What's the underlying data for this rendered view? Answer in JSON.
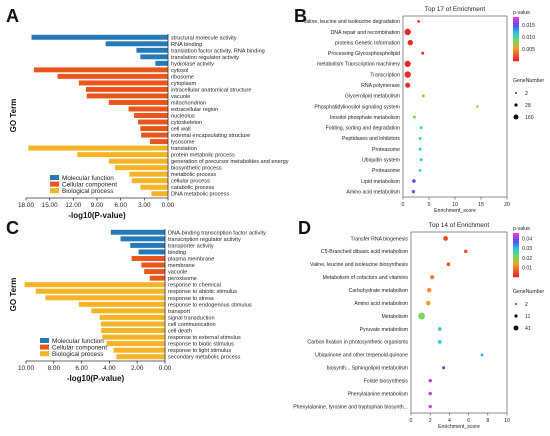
{
  "panels": {
    "A": "A",
    "B": "B",
    "C": "C",
    "D": "D"
  },
  "chart_data": [
    {
      "panel": "A",
      "type": "bar",
      "orientation": "horizontal-left",
      "xlabel": "-log10(P-value)",
      "ylabel": "GO Term",
      "xlim": [
        0,
        18
      ],
      "xticks": [
        "18.00",
        "15.00",
        "12.00",
        "9.00",
        "6.00",
        "3.00",
        "0.00"
      ],
      "legend": {
        "position": "bottom-left",
        "entries": [
          {
            "name": "Molecular function",
            "color": "#2679b9"
          },
          {
            "name": "Cellular component",
            "color": "#e8561c"
          },
          {
            "name": "Biological process",
            "color": "#f4b426"
          }
        ]
      },
      "categories": [
        "structural molecule activity",
        "RNA binding",
        "translation factor activity, RNA binding",
        "translation regulator activity",
        "hydrolase activity",
        "cytosol",
        "ribosome",
        "cytoplasm",
        "intracellular anatomical structure",
        "vacuole",
        "mitochondrion",
        "extracellular region",
        "nucleolus",
        "cytoskeleton",
        "cell wall",
        "external encapsulating structure",
        "lysosome",
        "translation",
        "protein metabolic process",
        "generation of precursor metabolites and energy",
        "biosynthetic process",
        "metabolic process",
        "cellular process",
        "catabolic process",
        "DNA metabolic process"
      ],
      "values": [
        17.3,
        7.9,
        4.0,
        3.5,
        1.6,
        17.0,
        14.0,
        11.3,
        10.4,
        10.3,
        7.5,
        5.0,
        4.3,
        3.8,
        3.5,
        3.4,
        2.3,
        17.7,
        11.5,
        7.5,
        6.7,
        4.9,
        4.6,
        3.5,
        2.1
      ],
      "groups": [
        0,
        0,
        0,
        0,
        0,
        1,
        1,
        1,
        1,
        1,
        1,
        1,
        1,
        1,
        1,
        1,
        1,
        2,
        2,
        2,
        2,
        2,
        2,
        2,
        2
      ]
    },
    {
      "panel": "B",
      "type": "scatter",
      "title": "Top 17 of Enrichment",
      "xlabel": "Enrichment_score",
      "xlim": [
        0,
        20
      ],
      "xticks": [
        0,
        5,
        10,
        15,
        20
      ],
      "colorbar": {
        "title": "p-value",
        "ticks": [
          "0.015",
          "0.010",
          "0.005"
        ]
      },
      "size_legend": {
        "title": "GeneNumber",
        "values": [
          "2",
          "28",
          "160"
        ]
      },
      "categories": [
        "Valine, leucine and isoleucine degradation",
        "DNA repair and recombination",
        "proteins Genetic Information",
        "Processing Glycosphospholipid",
        "metabolism Transcription machinery",
        "Transcription",
        "RNA polymerase",
        "Glycerolipid metabolism",
        "Phosphatidylinositol signaling system",
        "Inositol phosphate metabolism",
        "Folding, sorting and degradation",
        "Peptidases and inhibitors",
        "Proteasome",
        "Ubiquitin system",
        "Proteasome",
        "Lipid metabolism",
        "Amino acid metabolism"
      ],
      "x": [
        3.0,
        0.9,
        1.4,
        3.8,
        0.9,
        0.9,
        0.9,
        3.9,
        14.3,
        2.2,
        3.5,
        3.3,
        3.3,
        3.5,
        3.3,
        2.1,
        2.0
      ],
      "gene_number": [
        6,
        110,
        72,
        9,
        104,
        112,
        60,
        10,
        4,
        10,
        9,
        7,
        9,
        8,
        6,
        20,
        16
      ],
      "pvalue": [
        0.0003,
        0.0001,
        0.0002,
        0.0004,
        0.0001,
        0.0001,
        0.0002,
        0.006,
        0.008,
        0.009,
        0.011,
        0.012,
        0.012,
        0.013,
        0.012,
        0.017,
        0.018
      ]
    },
    {
      "panel": "C",
      "type": "bar",
      "orientation": "horizontal-left",
      "xlabel": "-log10(P-value)",
      "ylabel": "GO Term",
      "xlim": [
        0,
        10
      ],
      "xticks": [
        "10.00",
        "8.00",
        "6.00",
        "4.00",
        "2.00",
        "0.00"
      ],
      "legend": {
        "position": "bottom-left",
        "entries": [
          {
            "name": "Molecular function",
            "color": "#2679b9"
          },
          {
            "name": "Cellular component",
            "color": "#e8561c"
          },
          {
            "name": "Biological process",
            "color": "#f4b426"
          }
        ]
      },
      "categories": [
        "DNA-binding transcription factor activity",
        "transcription regulator activity",
        "transporter activity",
        "binding",
        "plasma membrane",
        "membrane",
        "vacuole",
        "peroxisome",
        "response to chemical",
        "response to abiotic stimulus",
        "response to stress",
        "response to endogenous stimulus",
        "transport",
        "signal transduction",
        "cell communication",
        "cell death",
        "response to external stimulus",
        "response to biotic stimulus",
        "response to light stimulus",
        "secondary metabolic process"
      ],
      "values": [
        3.9,
        3.2,
        2.5,
        1.9,
        2.4,
        1.7,
        1.5,
        1.1,
        10.1,
        9.3,
        8.6,
        6.2,
        5.3,
        4.7,
        4.6,
        4.6,
        4.5,
        4.2,
        3.7,
        3.5
      ],
      "groups": [
        0,
        0,
        0,
        0,
        1,
        1,
        1,
        1,
        2,
        2,
        2,
        2,
        2,
        2,
        2,
        2,
        2,
        2,
        2,
        2
      ]
    },
    {
      "panel": "D",
      "type": "scatter",
      "title": "Top 14 of Enrichment",
      "xlabel": "Enrichment_score",
      "xlim": [
        0,
        10
      ],
      "xticks": [
        0,
        2,
        4,
        6,
        8,
        10
      ],
      "colorbar": {
        "title": "p-value",
        "ticks": [
          "0.04",
          "0.03",
          "0.02",
          "0.01"
        ]
      },
      "size_legend": {
        "title": "GeneNumber",
        "values": [
          "2",
          "11",
          "41"
        ]
      },
      "categories": [
        "Transfer RNA biogenesis",
        "C5-Branched dibasic acid metabolism",
        "Valine, leucine and isoleucine biosynthesis",
        "Metabolism of cofactors and vitamins",
        "Carbohydrate metabolism",
        "Amino acid metabolism",
        "Metabolism",
        "Pyruvate metabolism",
        "Carbon fixation in photosynthetic organisms",
        "Ubiquinone and other terpenoid-quinone",
        "biosynth... Sphingolipid metabolism",
        "Folate biosynthesis",
        "Phenylalanine metabolism",
        "Phenylalanine, tyrosine and tryptophan biosynth..."
      ],
      "x": [
        3.6,
        5.7,
        3.9,
        2.2,
        1.9,
        1.8,
        1.1,
        3.0,
        3.0,
        7.4,
        3.4,
        2.0,
        2.0,
        2.0
      ],
      "gene_number": [
        14,
        5,
        5,
        10,
        12,
        13,
        41,
        6,
        6,
        2,
        3,
        4,
        4,
        4
      ],
      "pvalue": [
        0.003,
        0.004,
        0.004,
        0.009,
        0.011,
        0.012,
        0.02,
        0.027,
        0.028,
        0.03,
        0.038,
        0.042,
        0.043,
        0.044
      ]
    }
  ]
}
